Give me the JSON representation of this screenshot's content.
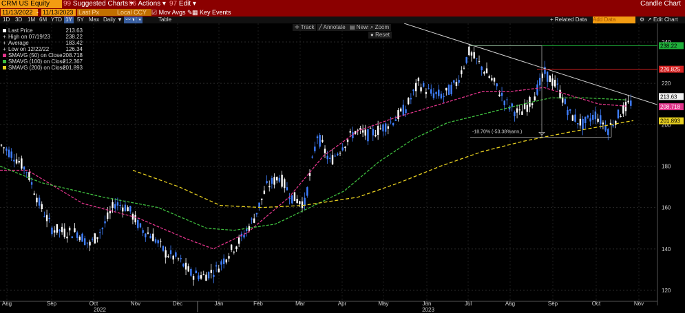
{
  "toolbar": {
    "security": "CRM US Equity",
    "suggested_num": "99",
    "suggested": "Suggested Charts",
    "actions_num": "96",
    "actions": "Actions",
    "edit_num": "97",
    "edit": "Edit",
    "window_title": "Candle Chart",
    "start_date": "11/13/2022",
    "end_date": "11/13/2023",
    "field": "Last Px",
    "currency": "Local CCY",
    "mov_avgs": "Mov Avgs",
    "key_events": "Key Events",
    "periods": [
      "1D",
      "3D",
      "1M",
      "6M",
      "YTD",
      "1Y",
      "5Y",
      "Max"
    ],
    "active_period": "1Y",
    "frequency": "Daily",
    "table": "Table",
    "related_data": "+ Related Data",
    "add_data": "Add Data",
    "edit_chart": "Edit Chart",
    "track": "Track",
    "annotate": "Annotate",
    "news": "News",
    "zoom": "Zoom",
    "reset": "Reset"
  },
  "legend": [
    {
      "label": "Last Price",
      "value": "213.63",
      "color": "#ffffff"
    },
    {
      "label": "High on 07/19/23",
      "value": "238.22",
      "color": "#ffffff"
    },
    {
      "label": "Average",
      "value": "183.42",
      "color": "#ffffff"
    },
    {
      "label": "Low on 12/22/22",
      "value": "126.34",
      "color": "#ffffff"
    },
    {
      "label": "SMAVG (50)  on Close",
      "value": "208.718",
      "color": "#e0348a"
    },
    {
      "label": "SMAVG (100)  on Close",
      "value": "212.367",
      "color": "#3fbf3f"
    },
    {
      "label": "SMAVG (200)  on Close",
      "value": "201.893",
      "color": "#e8d020"
    }
  ],
  "chart_data": {
    "type": "candlestick",
    "title": "CRM US Equity",
    "y_ticks": [
      120,
      140,
      160,
      180,
      200,
      220,
      240
    ],
    "ylim": [
      115,
      247
    ],
    "x_month_labels": [
      "Aug",
      "Sep",
      "Oct",
      "Nov",
      "Dec",
      "Jan",
      "Feb",
      "Mar",
      "Apr",
      "May",
      "Jun",
      "Jul",
      "Aug",
      "Sep",
      "Oct",
      "Nov"
    ],
    "year_labels": [
      "2022",
      "2023"
    ],
    "price_path": [
      [
        "Aug",
        190
      ],
      [
        "Aug",
        185
      ],
      [
        "Aug",
        178
      ],
      [
        "Sep",
        162
      ],
      [
        "Sep",
        150
      ],
      [
        "Sep",
        148
      ],
      [
        "Oct",
        148
      ],
      [
        "Oct",
        142
      ],
      [
        "Oct",
        150
      ],
      [
        "Oct",
        162
      ],
      [
        "Nov",
        160
      ],
      [
        "Nov",
        150
      ],
      [
        "Nov",
        146
      ],
      [
        "Nov",
        138
      ],
      [
        "Dec",
        135
      ],
      [
        "Dec",
        128
      ],
      [
        "Dec",
        127
      ],
      [
        "Dec",
        130
      ],
      [
        "Jan",
        138
      ],
      [
        "Jan",
        145
      ],
      [
        "Jan",
        155
      ],
      [
        "Jan",
        170
      ],
      [
        "Feb",
        175
      ],
      [
        "Feb",
        165
      ],
      [
        "Feb",
        162
      ],
      [
        "Mar",
        195
      ],
      [
        "Mar",
        182
      ],
      [
        "Mar",
        190
      ],
      [
        "Apr",
        197
      ],
      [
        "Apr",
        195
      ],
      [
        "Apr",
        198
      ],
      [
        "May",
        202
      ],
      [
        "May",
        208
      ],
      [
        "May",
        220
      ],
      [
        "Jun",
        215
      ],
      [
        "Jun",
        214
      ],
      [
        "Jun",
        220
      ],
      [
        "Jul",
        235
      ],
      [
        "Jul",
        228
      ],
      [
        "Jul",
        220
      ],
      [
        "Aug",
        210
      ],
      [
        "Aug",
        205
      ],
      [
        "Aug",
        212
      ],
      [
        "Aug",
        225
      ],
      [
        "Sep",
        218
      ],
      [
        "Sep",
        205
      ],
      [
        "Sep",
        200
      ],
      [
        "Oct",
        205
      ],
      [
        "Oct",
        198
      ],
      [
        "Oct",
        206
      ],
      [
        "Nov",
        212
      ]
    ],
    "series": [
      {
        "name": "SMAVG (50)  on Close",
        "value": 208.718,
        "color": "#e0348a"
      },
      {
        "name": "SMAVG (100)  on Close",
        "value": 212.367,
        "color": "#3fbf3f"
      },
      {
        "name": "SMAVG (200)  on Close",
        "value": 201.893,
        "color": "#e8d020"
      }
    ],
    "price_tags": [
      {
        "value": "238.22",
        "y": 238.22,
        "bg": "#1fae3a",
        "fg": "#000000"
      },
      {
        "value": "226.825",
        "y": 226.825,
        "bg": "#d42020",
        "fg": "#ffffff"
      },
      {
        "value": "213.63",
        "y": 213.63,
        "bg": "#f0f0f0",
        "fg": "#000000"
      },
      {
        "value": "208.718",
        "y": 208.718,
        "bg": "#e0348a",
        "fg": "#ffffff"
      },
      {
        "value": "201.893",
        "y": 201.893,
        "bg": "#e8d020",
        "fg": "#000000"
      }
    ],
    "annotation": "-18.70% (-53.38%ann.)",
    "candle_color_up": "#ffffff",
    "candle_color_down": "#3f7fff"
  }
}
